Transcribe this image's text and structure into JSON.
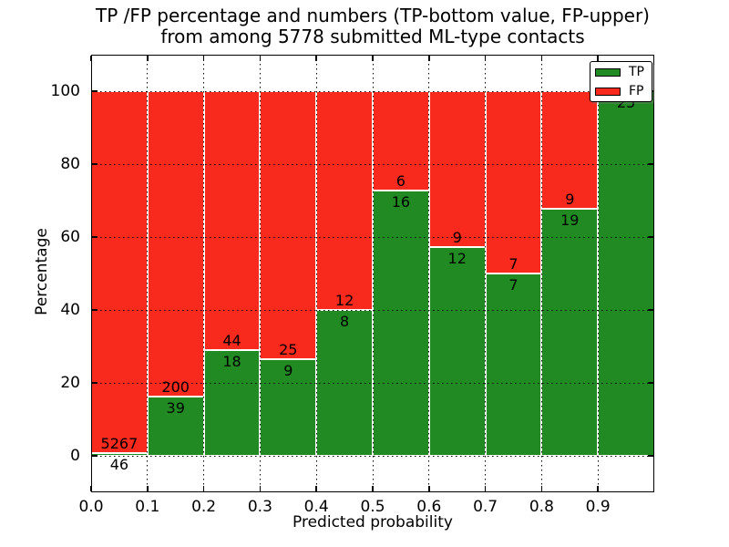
{
  "figure": {
    "title_line1": "TP /FP percentage and numbers (TP-bottom value, FP-upper)",
    "title_line2": "from among 5778 submitted ML-type contacts"
  },
  "axes": {
    "xlabel": "Predicted probability",
    "ylabel": "Percentage",
    "xticks": [
      "0.0",
      "0.1",
      "0.2",
      "0.3",
      "0.4",
      "0.5",
      "0.6",
      "0.7",
      "0.8",
      "0.9"
    ],
    "yticks": [
      "0",
      "20",
      "40",
      "60",
      "80",
      "100"
    ]
  },
  "legend": {
    "items": [
      {
        "label": "TP",
        "color": "#218a22"
      },
      {
        "label": "FP",
        "color": "#f8291d"
      }
    ]
  },
  "colors": {
    "tp_green": "#218a22",
    "fp_red": "#f8291d",
    "grid": "#000000",
    "background": "#ffffff"
  },
  "chart_data": {
    "type": "bar",
    "stacked": true,
    "normalized": "each bin scaled to 100%",
    "title": "TP /FP percentage and numbers (TP-bottom value, FP-upper) from among 5778 submitted ML-type contacts",
    "xlabel": "Predicted probability",
    "ylabel": "Percentage",
    "total_contacts": 5778,
    "bin_edges": [
      0.0,
      0.1,
      0.2,
      0.3,
      0.4,
      0.5,
      0.6,
      0.7,
      0.8,
      0.9,
      1.0
    ],
    "categories": [
      "0.0-0.1",
      "0.1-0.2",
      "0.2-0.3",
      "0.3-0.4",
      "0.4-0.5",
      "0.5-0.6",
      "0.6-0.7",
      "0.7-0.8",
      "0.8-0.9",
      "0.9-1.0"
    ],
    "series": [
      {
        "name": "TP",
        "color": "#218a22",
        "counts": [
          46,
          39,
          18,
          9,
          8,
          16,
          12,
          7,
          19,
          25
        ]
      },
      {
        "name": "FP",
        "color": "#f8291d",
        "counts": [
          5267,
          200,
          44,
          25,
          12,
          6,
          9,
          7,
          9,
          0
        ]
      }
    ],
    "tp_percent": [
      0.87,
      16.32,
      29.03,
      26.47,
      40.0,
      72.73,
      57.14,
      50.0,
      67.86,
      100.0
    ],
    "xlim": [
      0.0,
      1.0
    ],
    "ylim": [
      -10,
      110
    ],
    "grid": true,
    "grid_style": "dotted",
    "legend_position": "upper right"
  }
}
